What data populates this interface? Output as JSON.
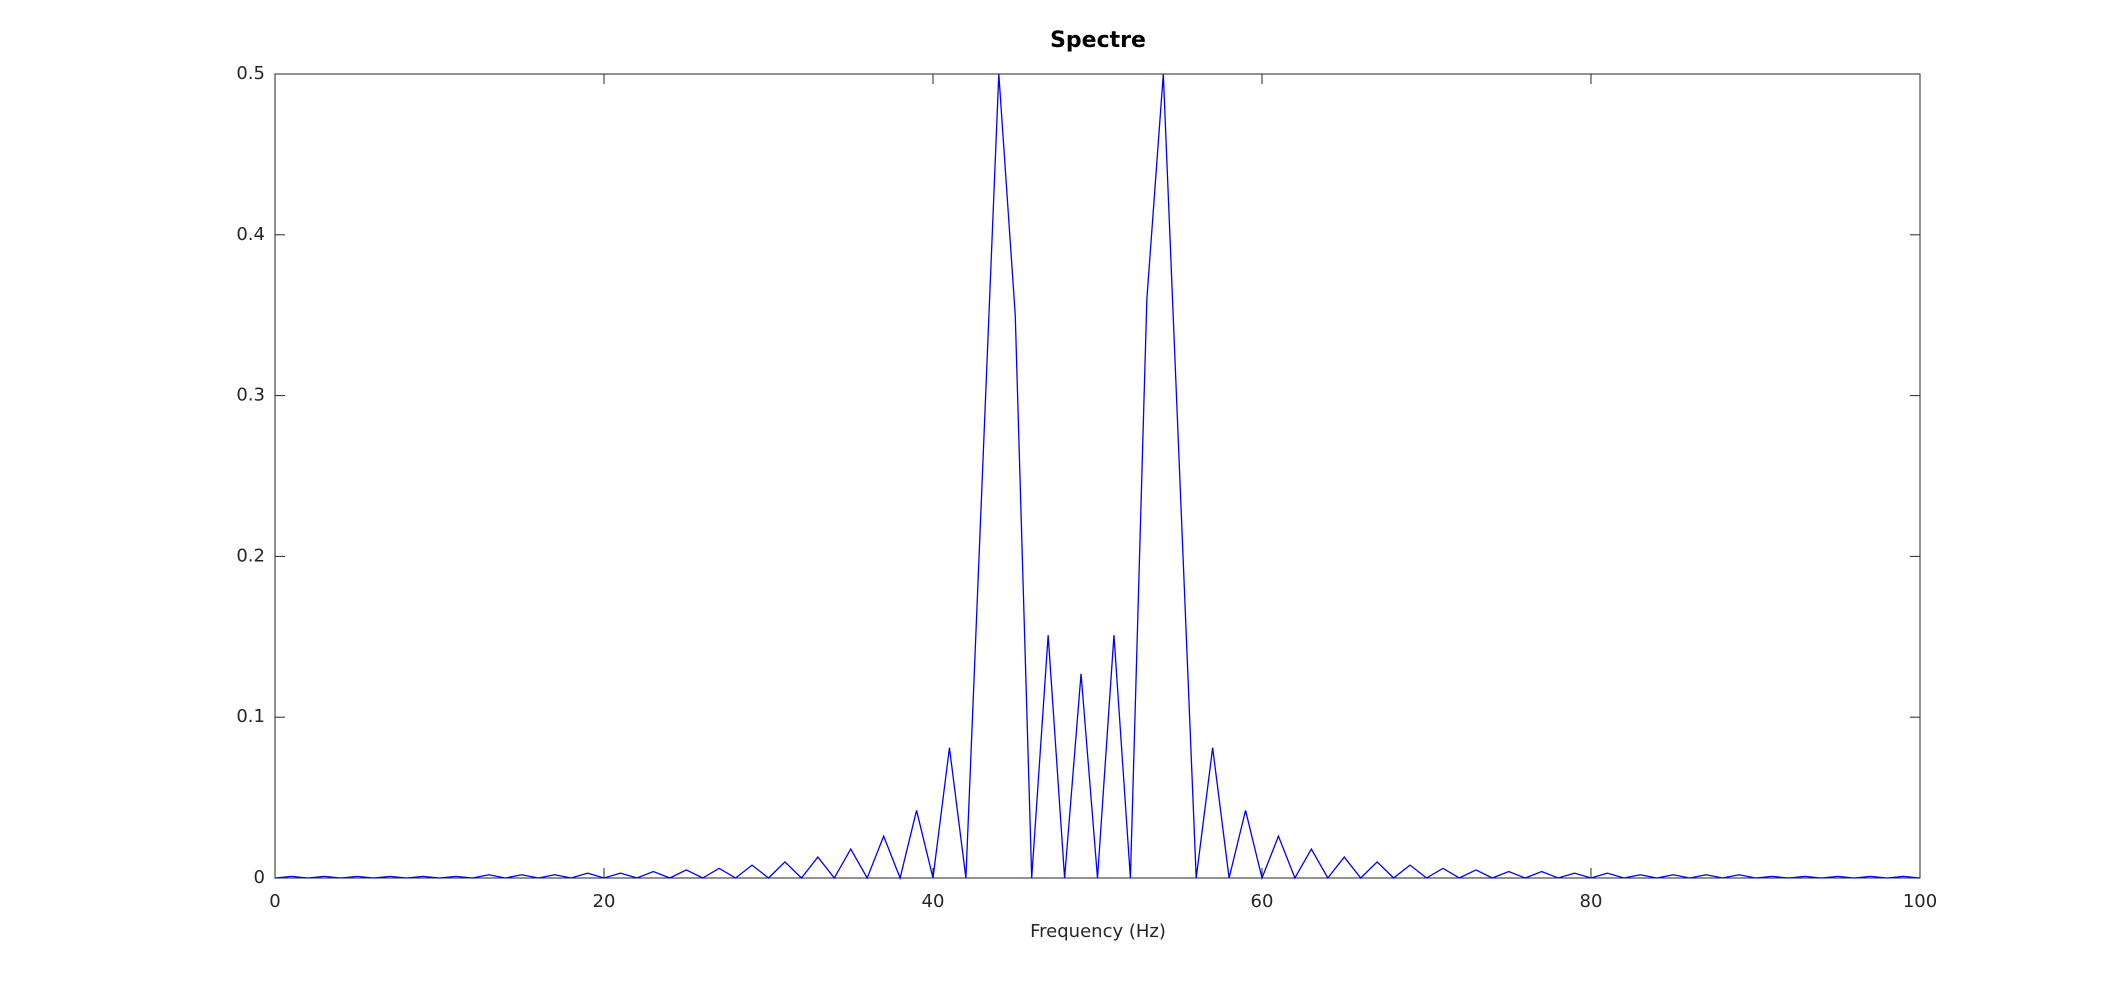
{
  "chart_data": {
    "type": "line",
    "title": "Spectre",
    "x_label": "Frequency (Hz)",
    "x": [
      0,
      1,
      2,
      3,
      4,
      5,
      6,
      7,
      8,
      9,
      10,
      11,
      12,
      13,
      14,
      15,
      16,
      17,
      18,
      19,
      20,
      21,
      22,
      23,
      24,
      25,
      26,
      27,
      28,
      29,
      30,
      31,
      32,
      33,
      34,
      35,
      36,
      37,
      38,
      39,
      40,
      41,
      42,
      43,
      44,
      45,
      46,
      47,
      48,
      49,
      50,
      51,
      52,
      53,
      54,
      55,
      56,
      57,
      58,
      59,
      60,
      61,
      62,
      63,
      64,
      65,
      66,
      67,
      68,
      69,
      70,
      71,
      72,
      73,
      74,
      75,
      76,
      77,
      78,
      79,
      80,
      81,
      82,
      83,
      84,
      85,
      86,
      87,
      88,
      89,
      90,
      91,
      92,
      93,
      94,
      95,
      96,
      97,
      98,
      99,
      100
    ],
    "values": [
      0,
      0.001,
      0,
      0.001,
      0,
      0.001,
      0,
      0.001,
      0,
      0.001,
      0,
      0.001,
      0,
      0.002,
      0,
      0.002,
      0,
      0.002,
      0,
      0.003,
      0,
      0.003,
      0,
      0.004,
      0,
      0.005,
      0,
      0.006,
      0,
      0.008,
      0,
      0.01,
      0,
      0.013,
      0,
      0.018,
      0,
      0.026,
      0,
      0.042,
      0,
      0.081,
      0,
      0.25,
      0.5,
      0.35,
      0,
      0.151,
      0,
      0.127,
      0,
      0.151,
      0,
      0.36,
      0.5,
      0.25,
      0,
      0.081,
      0,
      0.042,
      0,
      0.026,
      0,
      0.018,
      0,
      0.013,
      0,
      0.01,
      0,
      0.008,
      0,
      0.006,
      0,
      0.005,
      0,
      0.004,
      0,
      0.004,
      0,
      0.003,
      0,
      0.003,
      0,
      0.002,
      0,
      0.002,
      0,
      0.002,
      0,
      0.002,
      0,
      0.001,
      0,
      0.001,
      0,
      0.001,
      0,
      0.001,
      0,
      0.001,
      0
    ],
    "color": "#0000ff",
    "xlim": [
      0,
      100
    ],
    "xticks": [
      0,
      20,
      40,
      60,
      80,
      100
    ],
    "ylim": [
      0,
      0.5
    ],
    "yticks": [
      0,
      0.1,
      0.2,
      0.3,
      0.4,
      0.5
    ],
    "grid": false
  }
}
